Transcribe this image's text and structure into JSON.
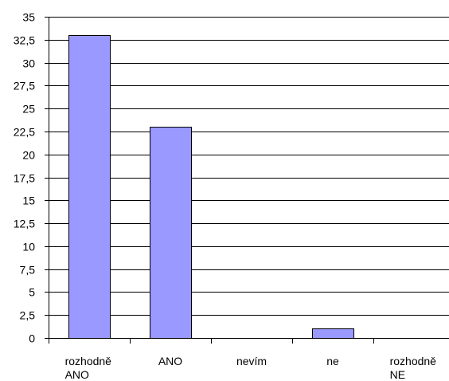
{
  "chart_data": {
    "type": "bar",
    "categories": [
      [
        "rozhodně",
        "ANO"
      ],
      [
        "ANO"
      ],
      [
        "nevím"
      ],
      [
        "ne"
      ],
      [
        "rozhodně",
        "NE"
      ]
    ],
    "values": [
      33,
      23,
      0,
      1,
      0
    ],
    "ylim": [
      0,
      35
    ],
    "yticks": [
      "0",
      "2,5",
      "5",
      "7,5",
      "10",
      "12,5",
      "15",
      "17,5",
      "20",
      "22,5",
      "25",
      "27,5",
      "30",
      "32,5",
      "35"
    ],
    "grid": true,
    "bar_color": "#9999FF",
    "bar_stroke": "#000000",
    "title": "",
    "xlabel": "",
    "ylabel": ""
  }
}
